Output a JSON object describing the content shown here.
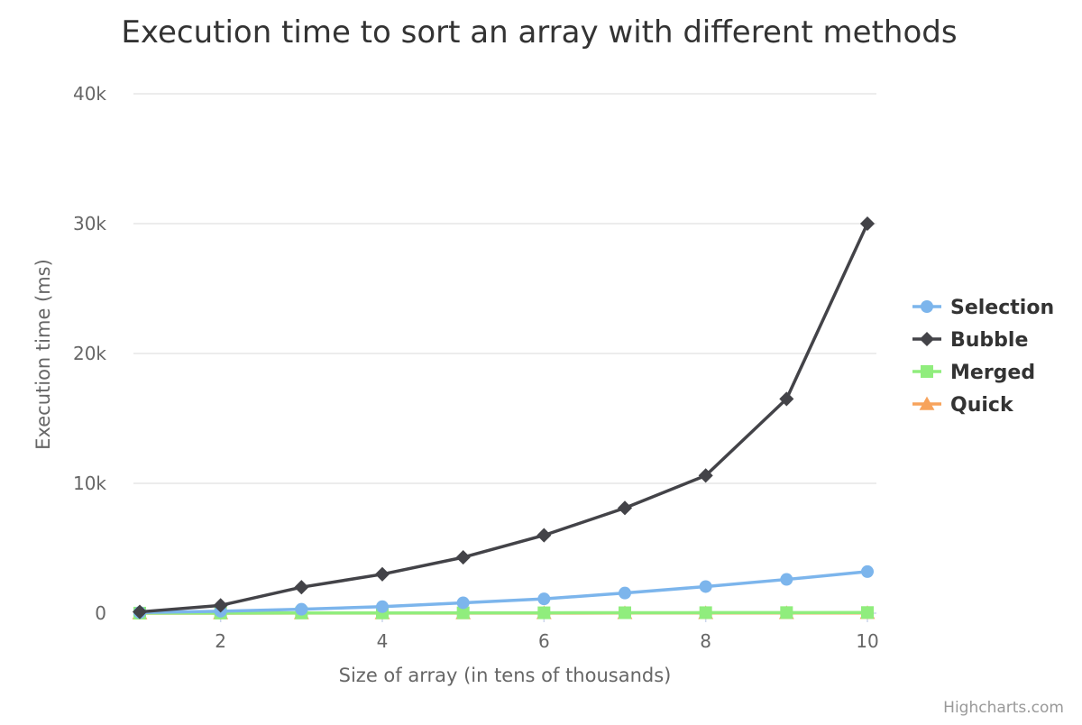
{
  "chart_data": {
    "type": "line",
    "title": "Execution time to sort an array with different methods",
    "xlabel": "Size of array (in tens of thousands)",
    "ylabel": "Execution time (ms)",
    "x": [
      1,
      2,
      3,
      4,
      5,
      6,
      7,
      8,
      9,
      10
    ],
    "x_ticks": [
      2,
      4,
      6,
      8,
      10
    ],
    "x_tick_labels": [
      "2",
      "4",
      "6",
      "8",
      "10"
    ],
    "xlim": [
      1,
      10
    ],
    "y_ticks": [
      0,
      10000,
      20000,
      30000,
      40000
    ],
    "y_tick_labels": [
      "0",
      "10k",
      "20k",
      "30k",
      "40k"
    ],
    "ylim": [
      0,
      40000
    ],
    "grid": "horizontal",
    "legend_position": "right",
    "series": [
      {
        "name": "Selection",
        "color": "#7cb5ec",
        "marker": "circle",
        "values": [
          50,
          150,
          300,
          500,
          800,
          1100,
          1550,
          2050,
          2600,
          3200
        ]
      },
      {
        "name": "Bubble",
        "color": "#434348",
        "marker": "diamond",
        "values": [
          100,
          600,
          2000,
          3000,
          4300,
          6000,
          8100,
          10600,
          16500,
          30000
        ]
      },
      {
        "name": "Merged",
        "color": "#90ed7d",
        "marker": "square",
        "values": [
          5,
          10,
          15,
          20,
          25,
          30,
          35,
          40,
          45,
          50
        ]
      },
      {
        "name": "Quick",
        "color": "#f7a35c",
        "marker": "triangle",
        "values": [
          2,
          4,
          6,
          8,
          10,
          12,
          14,
          16,
          18,
          20
        ]
      }
    ]
  },
  "credits": "Highcharts.com"
}
